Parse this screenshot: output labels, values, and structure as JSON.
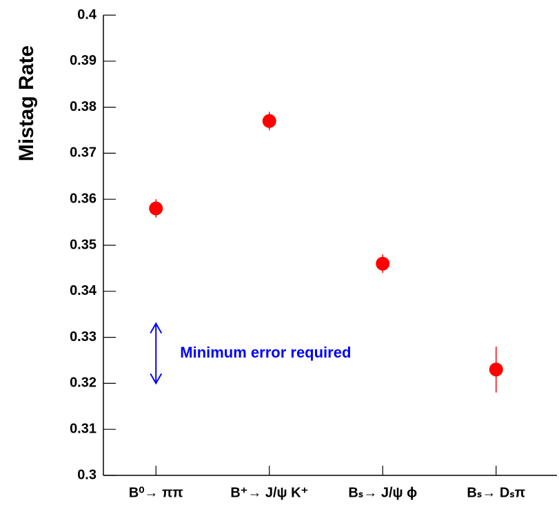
{
  "chart_data": {
    "type": "scatter",
    "y_label": "Mistag Rate",
    "categories": [
      "B⁰→ ππ",
      "B⁺→ J/ψ K⁺",
      "Bₛ→ J/ψ ϕ",
      "Bₛ→ Dₛπ"
    ],
    "values": [
      0.358,
      0.377,
      0.346,
      0.323
    ],
    "errors": [
      0.002,
      0.002,
      0.002,
      0.005
    ],
    "color": "#ff0000",
    "ylim": [
      0.3,
      0.4
    ],
    "yticks": [
      {
        "value": 0.3,
        "label": "0.3"
      },
      0.31,
      0.32,
      0.33,
      0.34,
      0.35,
      0.36,
      0.37,
      0.38,
      0.39,
      {
        "value": 0.4,
        "label": "0.4"
      }
    ],
    "annotation": {
      "text": "Minimum error required",
      "range": [
        0.32,
        0.333
      ],
      "color": "#0000ff"
    }
  }
}
